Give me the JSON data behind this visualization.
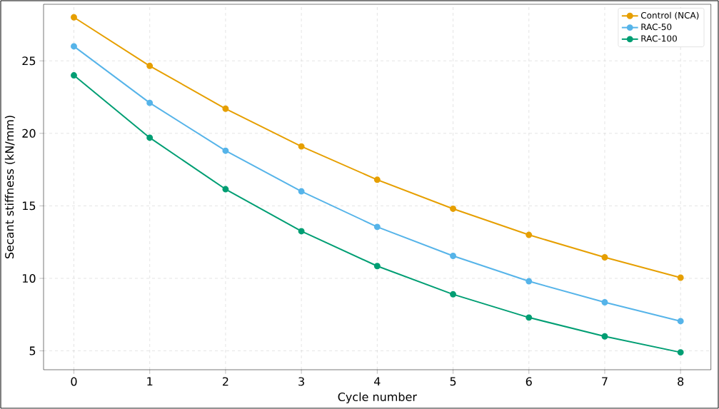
{
  "chart_data": {
    "type": "line",
    "xlabel": "Cycle number",
    "ylabel": "Secant stiffness (kN/mm)",
    "x": [
      0,
      1,
      2,
      3,
      4,
      5,
      6,
      7,
      8
    ],
    "series": [
      {
        "name": "Control (NCA)",
        "color": "#e69f00",
        "values": [
          28,
          24.65,
          21.7,
          19.1,
          16.8,
          14.8,
          13.0,
          11.45,
          10.05
        ]
      },
      {
        "name": "RAC-50",
        "color": "#56b4e9",
        "values": [
          26,
          22.1,
          18.8,
          16.0,
          13.55,
          11.55,
          9.8,
          8.35,
          7.05
        ]
      },
      {
        "name": "RAC-100",
        "color": "#009e73",
        "values": [
          24,
          19.7,
          16.15,
          13.25,
          10.85,
          8.9,
          7.3,
          6.0,
          4.9
        ]
      }
    ],
    "xlim": [
      -0.4,
      8.4
    ],
    "ylim": [
      3.7,
      28.9
    ],
    "xticks": [
      0,
      1,
      2,
      3,
      4,
      5,
      6,
      7,
      8
    ],
    "yticks": [
      5,
      10,
      15,
      20,
      25
    ],
    "grid": true,
    "legend": "top right",
    "marker": "circle",
    "line_style": "solid"
  }
}
